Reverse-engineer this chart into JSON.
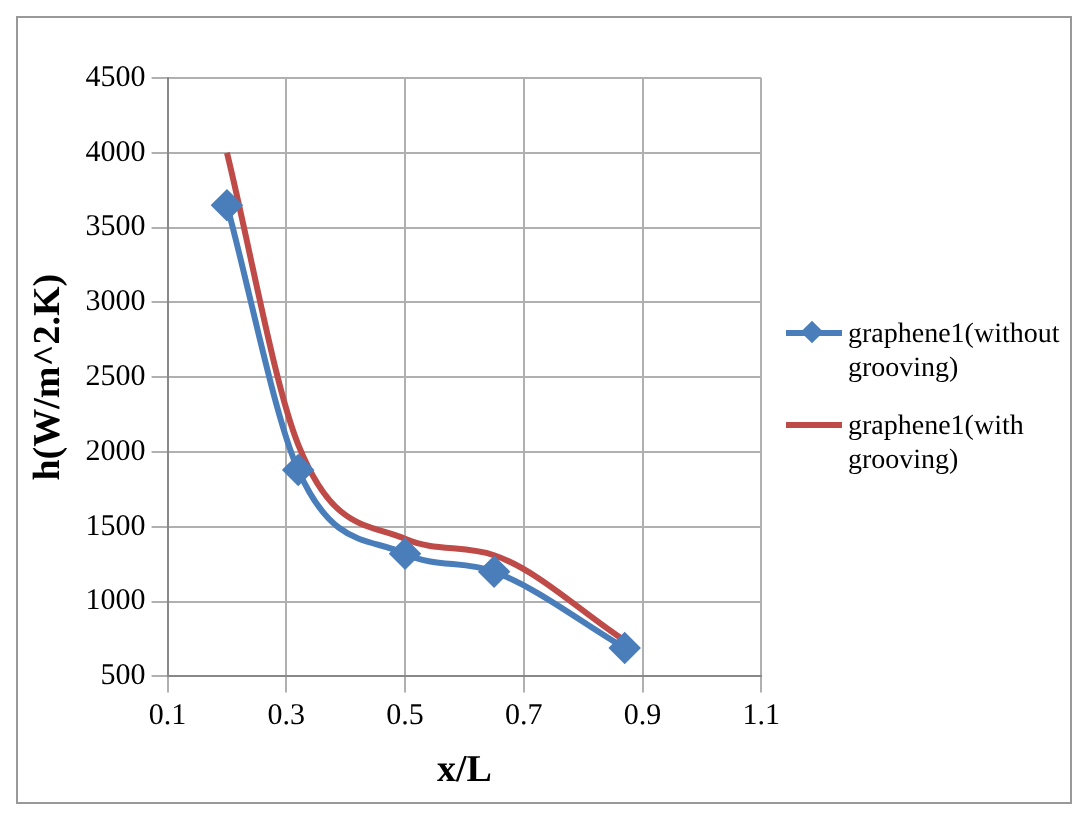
{
  "chart_data": {
    "type": "line",
    "xlabel": "x/L",
    "ylabel": "h(W/m^2.K)",
    "xlim": [
      0.1,
      1.1
    ],
    "xticks": [
      0.1,
      0.3,
      0.5,
      0.7,
      0.9,
      1.1
    ],
    "ylim": [
      500,
      4500
    ],
    "yticks": [
      500,
      1000,
      1500,
      2000,
      2500,
      3000,
      3500,
      4000,
      4500
    ],
    "grid": true,
    "legend": "right",
    "series": [
      {
        "name": "graphene1(without grooving)",
        "color": "#4a7ebb",
        "marker": "diamond",
        "x": [
          0.2,
          0.32,
          0.5,
          0.65,
          0.87
        ],
        "values": [
          3650,
          1880,
          1320,
          1200,
          690
        ]
      },
      {
        "name": "graphene1(with grooving)",
        "color": "#be4b48",
        "marker": "none",
        "x": [
          0.2,
          0.32,
          0.5,
          0.65,
          0.87
        ],
        "values": [
          4000,
          2050,
          1420,
          1310,
          740
        ]
      }
    ]
  }
}
